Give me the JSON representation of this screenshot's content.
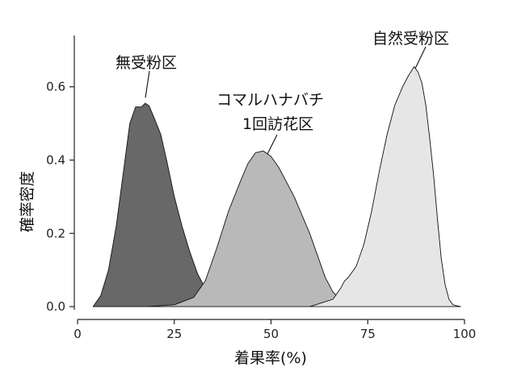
{
  "chart_data": {
    "type": "area",
    "xlabel": "着果率(%)",
    "ylabel": "確率密度",
    "xlim": [
      0,
      100
    ],
    "ylim": [
      -0.035,
      0.74
    ],
    "xticks": [
      0,
      25,
      50,
      75,
      100
    ],
    "yticks": [
      0.0,
      0.2,
      0.4,
      0.6
    ],
    "ytick_labels": [
      "0.0",
      "0.2",
      "0.4",
      "0.6"
    ],
    "grid": false,
    "legend": "none",
    "series": [
      {
        "name": "無受粉区",
        "color": "#686868",
        "points": [
          [
            4,
            0.0
          ],
          [
            6,
            0.03
          ],
          [
            8,
            0.1
          ],
          [
            10,
            0.22
          ],
          [
            12,
            0.38
          ],
          [
            13.5,
            0.5
          ],
          [
            15,
            0.545
          ],
          [
            16.5,
            0.545
          ],
          [
            17.5,
            0.555
          ],
          [
            18.5,
            0.548
          ],
          [
            20,
            0.51
          ],
          [
            21.5,
            0.47
          ],
          [
            23,
            0.4
          ],
          [
            25,
            0.3
          ],
          [
            27,
            0.22
          ],
          [
            29,
            0.15
          ],
          [
            31,
            0.09
          ],
          [
            33,
            0.05
          ],
          [
            35,
            0.03
          ],
          [
            37,
            0.02
          ],
          [
            39,
            0.015
          ],
          [
            41,
            0.012
          ],
          [
            43,
            0.008
          ],
          [
            45,
            0.006
          ],
          [
            47,
            0.003
          ],
          [
            50,
            0.001
          ],
          [
            54,
            0.0
          ]
        ]
      },
      {
        "name": "コマルハナバチ 1回訪花区",
        "color": "#b9b9b9",
        "points": [
          [
            18,
            0.0
          ],
          [
            25,
            0.005
          ],
          [
            30,
            0.025
          ],
          [
            33,
            0.07
          ],
          [
            36,
            0.16
          ],
          [
            39,
            0.26
          ],
          [
            42,
            0.34
          ],
          [
            44,
            0.39
          ],
          [
            46,
            0.42
          ],
          [
            48,
            0.425
          ],
          [
            50,
            0.41
          ],
          [
            52,
            0.38
          ],
          [
            54,
            0.34
          ],
          [
            56,
            0.3
          ],
          [
            58,
            0.25
          ],
          [
            60,
            0.2
          ],
          [
            62,
            0.14
          ],
          [
            64,
            0.08
          ],
          [
            66,
            0.04
          ],
          [
            68,
            0.02
          ],
          [
            70,
            0.01
          ],
          [
            72,
            0.005
          ],
          [
            74,
            0.0
          ]
        ]
      },
      {
        "name": "自然受粉区",
        "color": "#e6e6e6",
        "points": [
          [
            60,
            0.0
          ],
          [
            63,
            0.01
          ],
          [
            66,
            0.02
          ],
          [
            68,
            0.05
          ],
          [
            69,
            0.07
          ],
          [
            70,
            0.08
          ],
          [
            72,
            0.11
          ],
          [
            74,
            0.17
          ],
          [
            76,
            0.26
          ],
          [
            78,
            0.37
          ],
          [
            80,
            0.47
          ],
          [
            82,
            0.55
          ],
          [
            84,
            0.6
          ],
          [
            85.5,
            0.63
          ],
          [
            87,
            0.655
          ],
          [
            88,
            0.64
          ],
          [
            89,
            0.61
          ],
          [
            90,
            0.55
          ],
          [
            91,
            0.46
          ],
          [
            92,
            0.36
          ],
          [
            93,
            0.24
          ],
          [
            94,
            0.13
          ],
          [
            95,
            0.06
          ],
          [
            96,
            0.02
          ],
          [
            97,
            0.005
          ],
          [
            99,
            0.0
          ]
        ]
      }
    ],
    "annotations": [
      {
        "text": "無受粉区",
        "target": [
          18,
          0.55
        ]
      },
      {
        "lines": [
          "コマルハナバチ",
          "1回訪花区"
        ],
        "target": [
          48,
          0.42
        ]
      },
      {
        "text": "自然受粉区",
        "target": [
          87,
          0.65
        ]
      }
    ]
  }
}
